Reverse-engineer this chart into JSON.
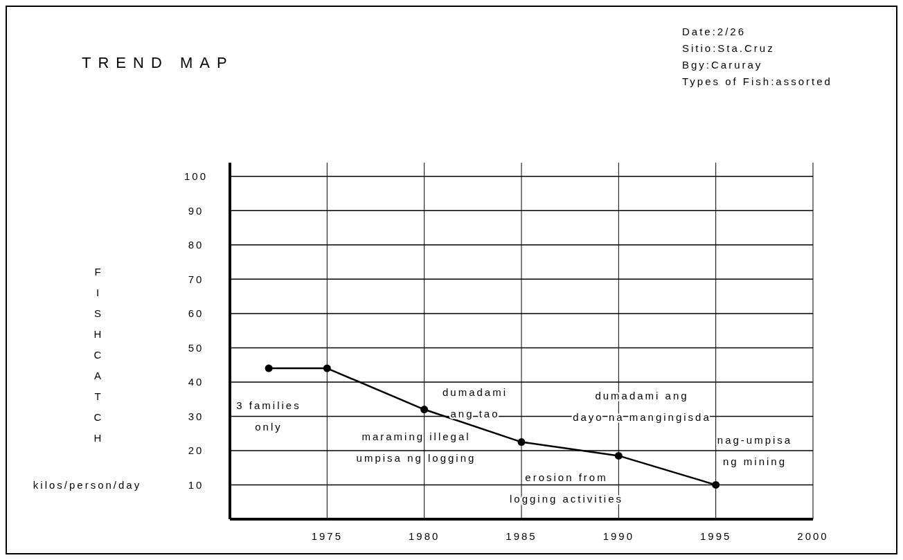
{
  "chart_data": {
    "type": "line",
    "title": "TREND MAP",
    "ylabel": "FISH CATCH",
    "x": [
      1972,
      1975,
      1980,
      1985,
      1990,
      1995
    ],
    "series": [
      {
        "color": "#000000",
        "values": [
          44,
          44,
          32,
          22.5,
          18.5,
          10
        ]
      }
    ],
    "xlim": [
      1970,
      2000
    ],
    "xticks": [
      1975,
      1980,
      1985,
      1990,
      1995,
      2000
    ],
    "ylim": [
      0,
      104
    ],
    "yticks": [
      10,
      20,
      30,
      40,
      50,
      60,
      70,
      80,
      90,
      100
    ],
    "grid": true,
    "marker": "circle",
    "line_style": "solid",
    "annotations": [
      "Date:2/26",
      "Sitio:Sta.Cruz",
      "Bgy:Caruray",
      "Types of Fish:assorted",
      "kilos/person/day",
      "3 families\nonly",
      "dumadami\nang tao",
      "maraming illegal\numpisa ng logging",
      "dumadami ang\ndayo na mangingisda",
      "erosion from\nlogging activities",
      "nag-umpisa\nng mining"
    ]
  }
}
